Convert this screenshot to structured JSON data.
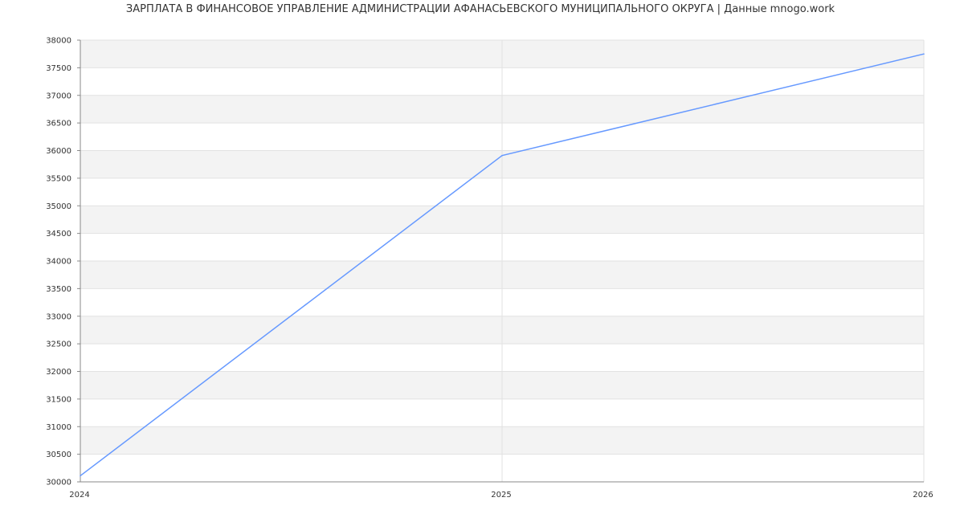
{
  "chart_data": {
    "type": "line",
    "title": "ЗАРПЛАТА В ФИНАНСОВОЕ УПРАВЛЕНИЕ АДМИНИСТРАЦИИ АФАНАСЬЕВСКОГО МУНИЦИПАЛЬНОГО ОКРУГА | Данные mnogo.work",
    "xlabel": "",
    "ylabel": "",
    "x": [
      2024,
      2025,
      2026
    ],
    "series": [
      {
        "values": [
          30110,
          35910,
          37750
        ],
        "color": "#6699ff"
      }
    ],
    "xlim": [
      2024,
      2026
    ],
    "ylim": [
      30000,
      38000
    ],
    "xticks": [
      "2024",
      "2025",
      "2026"
    ],
    "yticks": [
      "30000",
      "30500",
      "31000",
      "31500",
      "32000",
      "32500",
      "33000",
      "33500",
      "34000",
      "34500",
      "35000",
      "35500",
      "36000",
      "36500",
      "37000",
      "37500",
      "38000"
    ],
    "grid": true,
    "band_color": "#f3f3f3"
  }
}
